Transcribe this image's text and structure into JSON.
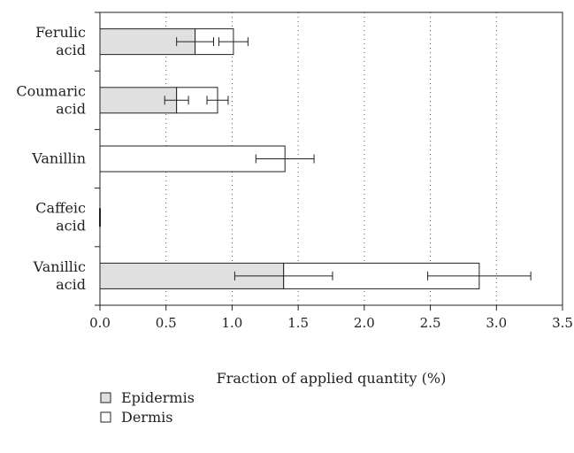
{
  "chart_data": {
    "type": "bar",
    "orientation": "horizontal",
    "stacked": true,
    "categories": [
      [
        "Ferulic",
        "acid"
      ],
      [
        "Coumaric",
        "acid"
      ],
      [
        "Vanillin"
      ],
      [
        "Caffeic",
        "acid"
      ],
      [
        "Vanillic",
        "acid"
      ]
    ],
    "series": [
      {
        "name": "Epidermis",
        "color": "#e0e0e0",
        "values": [
          0.72,
          0.58,
          0.0,
          0.0,
          1.39
        ],
        "errors": [
          0.14,
          0.09,
          0.0,
          0.0,
          0.37
        ]
      },
      {
        "name": "Dermis",
        "color": "#ffffff",
        "values": [
          0.29,
          0.31,
          1.4,
          0.0,
          1.48
        ],
        "errors": [
          0.11,
          0.08,
          0.22,
          0.0,
          0.39
        ]
      }
    ],
    "xlabel": "Fraction of applied quantity (%)",
    "ylabel": "",
    "xlim": [
      0,
      3.5
    ],
    "xticks": [
      "0.0",
      "0.5",
      "1.0",
      "1.5",
      "2.0",
      "2.5",
      "3.0",
      "3.5"
    ],
    "grid": "vertical dotted",
    "legend_position": "bottom-left"
  }
}
